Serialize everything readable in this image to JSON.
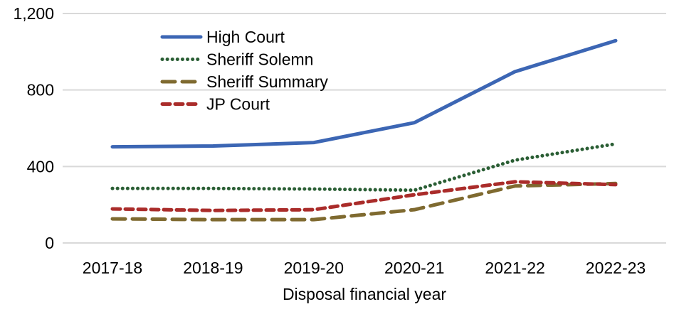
{
  "chart_data": {
    "type": "line",
    "title": "",
    "xlabel": "Disposal financial year",
    "ylabel": "",
    "categories": [
      "2017-18",
      "2018-19",
      "2019-20",
      "2020-21",
      "2021-22",
      "2022-23"
    ],
    "ylim": [
      0,
      1200
    ],
    "yticks": [
      0,
      400,
      800,
      1200
    ],
    "ytick_labels": [
      "0",
      "400",
      "800",
      "1,200"
    ],
    "grid": true,
    "legend_position": "top-left",
    "series": [
      {
        "name": "High Court",
        "values": [
          503,
          507,
          525,
          629,
          896,
          1058
        ],
        "color": "#3c66b4",
        "dash": "solid"
      },
      {
        "name": "Sheriff Solemn",
        "values": [
          285,
          285,
          282,
          276,
          433,
          518
        ],
        "color": "#2a5e34",
        "dash": "dotted"
      },
      {
        "name": "Sheriff Summary",
        "values": [
          126,
          122,
          122,
          174,
          298,
          311
        ],
        "color": "#7f6a30",
        "dash": "long-dash"
      },
      {
        "name": "JP Court",
        "values": [
          178,
          170,
          174,
          252,
          320,
          305
        ],
        "color": "#aa2c2a",
        "dash": "dash"
      }
    ]
  }
}
